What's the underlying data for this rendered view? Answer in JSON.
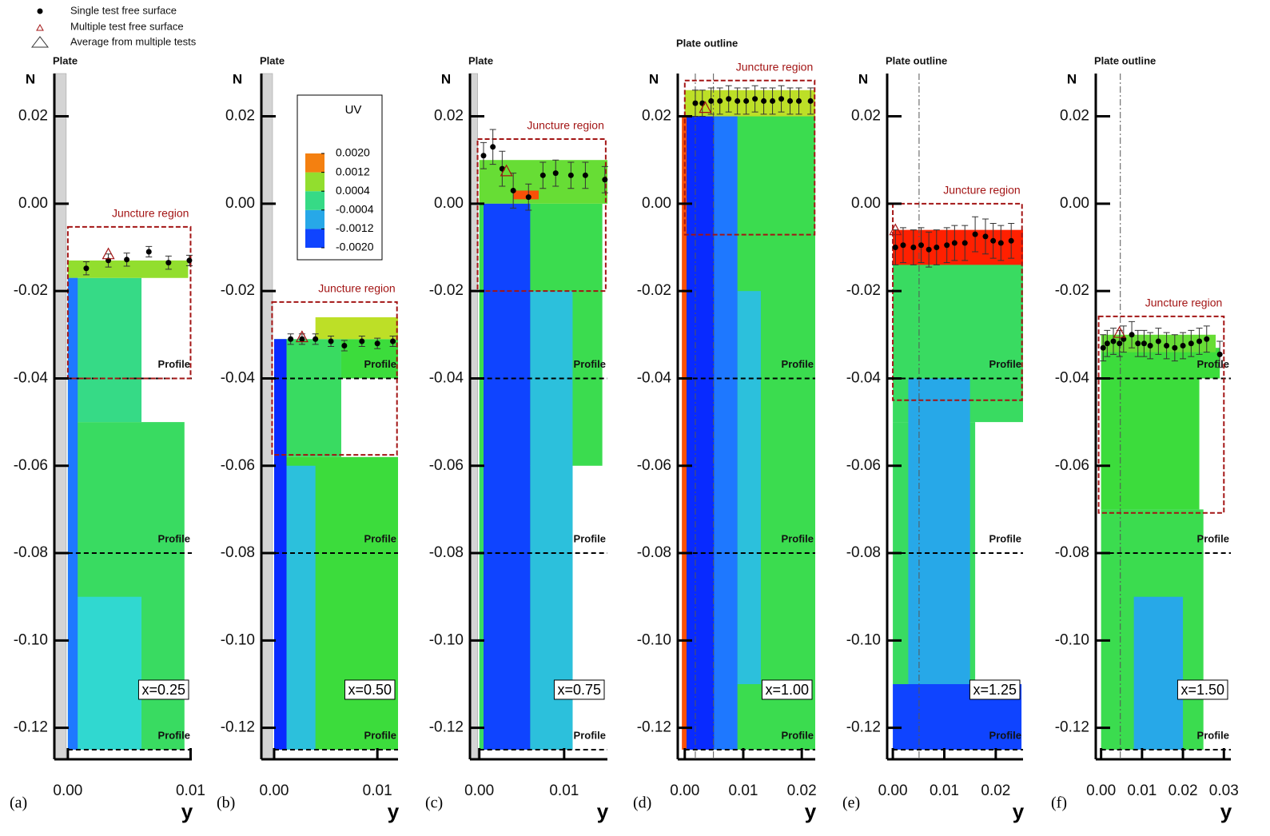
{
  "legend": [
    "Single test free surface",
    "Multiple test free surface",
    "Average from multiple tests"
  ],
  "colorbar": {
    "title": "UV",
    "ticks": [
      {
        "value": 0.002,
        "label": "0.0020"
      },
      {
        "value": 0.0012,
        "label": "0.0012"
      },
      {
        "value": 0.0004,
        "label": "0.0004"
      },
      {
        "value": -0.0004,
        "label": "-0.0004"
      },
      {
        "value": -0.0012,
        "label": "-0.0012"
      },
      {
        "value": -0.002,
        "label": "-0.0020"
      }
    ],
    "stops": [
      [
        -0.002,
        "#0010ff"
      ],
      [
        -0.0012,
        "#1e78ff"
      ],
      [
        -0.0004,
        "#30d8d0"
      ],
      [
        0.0004,
        "#3cdc3c"
      ],
      [
        0.0012,
        "#e8e020"
      ],
      [
        0.002,
        "#ff2000"
      ]
    ]
  },
  "chart_data": [
    {
      "type": "contour",
      "panel_label": "(a)",
      "plate_label": "Plate",
      "plate_style": "solid",
      "x_label": "y",
      "y_label": "N",
      "position_label": "x=0.25",
      "xlim": [
        -0.0011,
        0.0101
      ],
      "ylim": [
        -0.1272,
        0.0298
      ],
      "xticks": [
        {
          "value": 0,
          "label": "0.00"
        },
        {
          "value": 0.01,
          "label": "0.01"
        }
      ],
      "yticks": [
        {
          "value": 0.02,
          "label": "0.02"
        },
        {
          "value": 0,
          "label": "0.00"
        },
        {
          "value": -0.02,
          "label": "-0.02"
        },
        {
          "value": -0.04,
          "label": "-0.04"
        },
        {
          "value": -0.06,
          "label": "-0.06"
        },
        {
          "value": -0.08,
          "label": "-0.08"
        },
        {
          "value": -0.1,
          "label": "-0.10"
        },
        {
          "value": -0.12,
          "label": "-0.12"
        }
      ],
      "region": {
        "label": "Juncture region",
        "xlim": [
          0,
          0.01
        ],
        "ylim": [
          -0.04,
          -0.0053
        ]
      },
      "profiles": {
        "label": "Profile",
        "values": [
          -0.04,
          -0.08,
          -0.125
        ]
      },
      "field": [
        [
          0,
          0.0095,
          -0.125,
          -0.05,
          0.0002
        ],
        [
          0,
          0.006,
          -0.05,
          -0.017,
          0.0
        ],
        [
          0,
          0.0098,
          -0.017,
          -0.013,
          0.0008
        ],
        [
          0.0006,
          0.006,
          -0.125,
          -0.09,
          -0.0004
        ],
        [
          0,
          0.0008,
          -0.125,
          -0.017,
          -0.0012
        ]
      ],
      "surface": {
        "x": [
          0.0015,
          0.0033,
          0.0048,
          0.0066,
          0.0082,
          0.0099
        ],
        "values": [
          -0.0148,
          -0.013,
          -0.0128,
          -0.011,
          -0.0135,
          -0.013
        ],
        "errors": [
          0.0015,
          0.0015,
          0.0015,
          0.0012,
          0.0015,
          0.0012
        ]
      },
      "average": {
        "x": [
          0.0033
        ],
        "values": [
          -0.0115
        ]
      }
    },
    {
      "type": "contour",
      "panel_label": "(b)",
      "plate_label": "Plate",
      "plate_style": "solid",
      "x_label": "y",
      "y_label": "N",
      "position_label": "x=0.50",
      "xlim": [
        -0.00124,
        0.012
      ],
      "ylim": [
        -0.1272,
        0.0298
      ],
      "xticks": [
        {
          "value": 0,
          "label": "0.00"
        },
        {
          "value": 0.01,
          "label": "0.01"
        }
      ],
      "yticks": [
        {
          "value": 0.02,
          "label": "0.02"
        },
        {
          "value": 0,
          "label": "0.00"
        },
        {
          "value": -0.02,
          "label": "-0.02"
        },
        {
          "value": -0.04,
          "label": "-0.04"
        },
        {
          "value": -0.06,
          "label": "-0.06"
        },
        {
          "value": -0.08,
          "label": "-0.08"
        },
        {
          "value": -0.1,
          "label": "-0.10"
        },
        {
          "value": -0.12,
          "label": "-0.12"
        }
      ],
      "region": {
        "label": "Juncture region",
        "xlim": [
          -0.0002,
          0.0119
        ],
        "ylim": [
          -0.0575,
          -0.0225
        ]
      },
      "profiles": {
        "label": "Profile",
        "values": [
          -0.04,
          -0.08,
          -0.125
        ]
      },
      "field": [
        [
          0,
          0.012,
          -0.125,
          -0.058,
          0.0004
        ],
        [
          0,
          0.0065,
          -0.058,
          -0.031,
          0.0002
        ],
        [
          0.0065,
          0.012,
          -0.04,
          -0.031,
          0.0004
        ],
        [
          0.004,
          0.012,
          -0.031,
          -0.026,
          0.001
        ],
        [
          0.0012,
          0.004,
          -0.125,
          -0.06,
          -0.0006
        ],
        [
          0,
          0.0012,
          -0.125,
          -0.031,
          -0.0018
        ]
      ],
      "surface": {
        "x": [
          0.0016,
          0.0027,
          0.004,
          0.0055,
          0.0068,
          0.0085,
          0.01,
          0.0115
        ],
        "values": [
          -0.031,
          -0.031,
          -0.031,
          -0.0315,
          -0.0325,
          -0.0315,
          -0.032,
          -0.0315
        ],
        "errors": [
          0.0012,
          0.0012,
          0.0012,
          0.0012,
          0.0012,
          0.0012,
          0.0012,
          0.0012
        ]
      },
      "average": {
        "x": [
          0.0027
        ],
        "values": [
          -0.0305
        ]
      }
    },
    {
      "type": "contour",
      "panel_label": "(c)",
      "plate_label": "Plate",
      "plate_style": "solid",
      "x_label": "y",
      "y_label": "N",
      "position_label": "x=0.75",
      "xlim": [
        -0.0011,
        0.0151
      ],
      "ylim": [
        -0.1272,
        0.0298
      ],
      "xticks": [
        {
          "value": 0,
          "label": "0.00"
        },
        {
          "value": 0.01,
          "label": "0.01"
        }
      ],
      "yticks": [
        {
          "value": 0.02,
          "label": "0.02"
        },
        {
          "value": 0,
          "label": "0.00"
        },
        {
          "value": -0.02,
          "label": "-0.02"
        },
        {
          "value": -0.04,
          "label": "-0.04"
        },
        {
          "value": -0.06,
          "label": "-0.06"
        },
        {
          "value": -0.08,
          "label": "-0.08"
        },
        {
          "value": -0.1,
          "label": "-0.10"
        },
        {
          "value": -0.12,
          "label": "-0.12"
        }
      ],
      "region": {
        "label": "Juncture region",
        "xlim": [
          -0.0002,
          0.0149
        ],
        "ylim": [
          -0.02,
          0.0148
        ]
      },
      "profiles": {
        "label": "Profile",
        "values": [
          -0.04,
          -0.08,
          -0.125
        ]
      },
      "field": [
        [
          0,
          0.011,
          -0.125,
          -0.06,
          0.0002
        ],
        [
          0,
          0.0145,
          -0.06,
          0.0,
          0.0003
        ],
        [
          0,
          0.0151,
          0.0,
          0.01,
          0.0006
        ],
        [
          0.006,
          0.011,
          -0.125,
          -0.02,
          -0.0006
        ],
        [
          0.0005,
          0.006,
          -0.125,
          0.0,
          -0.0016
        ],
        [
          0.004,
          0.007,
          0.001,
          0.003,
          0.0018
        ]
      ],
      "surface": {
        "x": [
          0.0005,
          0.0016,
          0.0027,
          0.004,
          0.0058,
          0.0075,
          0.009,
          0.0108,
          0.0125,
          0.0148
        ],
        "values": [
          0.011,
          0.013,
          0.008,
          0.003,
          0.0015,
          0.0065,
          0.007,
          0.0065,
          0.0065,
          0.0055
        ],
        "errors": [
          0.003,
          0.004,
          0.004,
          0.004,
          0.003,
          0.003,
          0.003,
          0.003,
          0.003,
          0.003
        ]
      },
      "average": {
        "x": [
          0.0032
        ],
        "values": [
          0.0075
        ]
      }
    },
    {
      "type": "contour",
      "panel_label": "(d)",
      "plate_label": "Plate outline",
      "plate_style": "outline",
      "plate_outline": [
        0.0018,
        0.0049
      ],
      "x_label": "y",
      "y_label": "N",
      "position_label": "x=1.00",
      "xlim": [
        -0.0012,
        0.0223
      ],
      "ylim": [
        -0.1272,
        0.0298
      ],
      "xticks": [
        {
          "value": 0,
          "label": "0.00"
        },
        {
          "value": 0.01,
          "label": "0.01"
        },
        {
          "value": 0.02,
          "label": "0.02"
        }
      ],
      "yticks": [
        {
          "value": 0.02,
          "label": "0.02"
        },
        {
          "value": 0,
          "label": "0.00"
        },
        {
          "value": -0.02,
          "label": "-0.02"
        },
        {
          "value": -0.04,
          "label": "-0.04"
        },
        {
          "value": -0.06,
          "label": "-0.06"
        },
        {
          "value": -0.08,
          "label": "-0.08"
        },
        {
          "value": -0.1,
          "label": "-0.10"
        },
        {
          "value": -0.12,
          "label": "-0.12"
        }
      ],
      "region": {
        "label": "Juncture region",
        "xlim": [
          0,
          0.0222
        ],
        "ylim": [
          -0.0071,
          0.0282
        ]
      },
      "profiles": {
        "label": "Profile",
        "values": [
          -0.04,
          -0.08,
          -0.125
        ]
      },
      "field": [
        [
          0,
          0.0223,
          -0.125,
          0.025,
          0.0003
        ],
        [
          0.009,
          0.013,
          -0.11,
          -0.02,
          -0.0006
        ],
        [
          0.005,
          0.009,
          -0.125,
          0.025,
          -0.0012
        ],
        [
          0,
          0.005,
          -0.125,
          0.025,
          -0.0018
        ],
        [
          0,
          0.0223,
          0.02,
          0.026,
          0.001
        ],
        [
          -0.0005,
          0.0003,
          -0.125,
          0.02,
          0.0018
        ]
      ],
      "surface": {
        "x": [
          0.0018,
          0.003,
          0.0045,
          0.006,
          0.0075,
          0.009,
          0.0105,
          0.012,
          0.0135,
          0.015,
          0.0165,
          0.018,
          0.0195,
          0.0215
        ],
        "values": [
          0.023,
          0.023,
          0.0235,
          0.0235,
          0.024,
          0.0235,
          0.0235,
          0.024,
          0.0235,
          0.0235,
          0.024,
          0.0235,
          0.0235,
          0.0235
        ],
        "errors": [
          0.003,
          0.003,
          0.003,
          0.003,
          0.003,
          0.003,
          0.003,
          0.003,
          0.003,
          0.003,
          0.003,
          0.003,
          0.003,
          0.003
        ]
      },
      "average": {
        "x": [
          0.0035
        ],
        "values": [
          0.022
        ]
      }
    },
    {
      "type": "contour",
      "panel_label": "(e)",
      "plate_label": "Plate outline",
      "plate_style": "outline",
      "plate_outline": [
        0.0051
      ],
      "x_label": "y",
      "y_label": "N",
      "position_label": "x=1.25",
      "xlim": [
        -0.0011,
        0.0253
      ],
      "ylim": [
        -0.1272,
        0.0298
      ],
      "xticks": [
        {
          "value": 0,
          "label": "0.00"
        },
        {
          "value": 0.01,
          "label": "0.01"
        },
        {
          "value": 0.02,
          "label": "0.02"
        }
      ],
      "yticks": [
        {
          "value": 0.02,
          "label": "0.02"
        },
        {
          "value": 0,
          "label": "0.00"
        },
        {
          "value": -0.02,
          "label": "-0.02"
        },
        {
          "value": -0.04,
          "label": "-0.04"
        },
        {
          "value": -0.06,
          "label": "-0.06"
        },
        {
          "value": -0.08,
          "label": "-0.08"
        },
        {
          "value": -0.1,
          "label": "-0.10"
        },
        {
          "value": -0.12,
          "label": "-0.12"
        }
      ],
      "region": {
        "label": "Juncture region",
        "xlim": [
          0,
          0.0251
        ],
        "ylim": [
          -0.045,
          0
        ]
      },
      "profiles": {
        "label": "Profile",
        "values": [
          -0.04,
          -0.08,
          -0.125
        ]
      },
      "field": [
        [
          0,
          0.016,
          -0.11,
          -0.05,
          0.0002
        ],
        [
          0,
          0.0253,
          -0.05,
          -0.013,
          0.0002
        ],
        [
          0.003,
          0.015,
          -0.11,
          -0.04,
          -0.0008
        ],
        [
          0,
          0.025,
          -0.125,
          -0.11,
          -0.0016
        ],
        [
          0,
          0.0253,
          -0.014,
          -0.006,
          0.002
        ]
      ],
      "surface": {
        "x": [
          0.0005,
          0.002,
          0.004,
          0.0055,
          0.007,
          0.0085,
          0.0105,
          0.012,
          0.014,
          0.016,
          0.018,
          0.0195,
          0.021,
          0.023
        ],
        "values": [
          -0.01,
          -0.0095,
          -0.01,
          -0.0095,
          -0.0105,
          -0.01,
          -0.0095,
          -0.009,
          -0.009,
          -0.007,
          -0.0075,
          -0.0085,
          -0.009,
          -0.0085
        ],
        "errors": [
          0.004,
          0.004,
          0.004,
          0.004,
          0.004,
          0.004,
          0.004,
          0.004,
          0.004,
          0.004,
          0.004,
          0.004,
          0.004,
          0.004
        ]
      },
      "average": {
        "x": [
          0.0005
        ],
        "values": [
          -0.006
        ]
      }
    },
    {
      "type": "contour",
      "panel_label": "(f)",
      "plate_label": "Plate outline",
      "plate_style": "outline",
      "plate_outline": [
        0.0047
      ],
      "x_label": "y",
      "y_label": "N",
      "position_label": "x=1.50",
      "xlim": [
        -0.0013,
        0.0317
      ],
      "ylim": [
        -0.1272,
        0.0298
      ],
      "xticks": [
        {
          "value": 0,
          "label": "0.00"
        },
        {
          "value": 0.01,
          "label": "0.01"
        },
        {
          "value": 0.02,
          "label": "0.02"
        },
        {
          "value": 0.03,
          "label": "0.03"
        }
      ],
      "yticks": [
        {
          "value": 0.02,
          "label": "0.02"
        },
        {
          "value": 0,
          "label": "0.00"
        },
        {
          "value": -0.02,
          "label": "-0.02"
        },
        {
          "value": -0.04,
          "label": "-0.04"
        },
        {
          "value": -0.06,
          "label": "-0.06"
        },
        {
          "value": -0.08,
          "label": "-0.08"
        },
        {
          "value": -0.1,
          "label": "-0.10"
        },
        {
          "value": -0.12,
          "label": "-0.12"
        }
      ],
      "region": {
        "label": "Juncture region",
        "xlim": [
          -0.0006,
          0.03
        ],
        "ylim": [
          -0.0708,
          -0.0258
        ]
      },
      "profiles": {
        "label": "Profile",
        "values": [
          -0.04,
          -0.08,
          -0.125
        ]
      },
      "field": [
        [
          0,
          0.025,
          -0.125,
          -0.07,
          0.0003
        ],
        [
          0,
          0.024,
          -0.07,
          -0.04,
          0.0004
        ],
        [
          0,
          0.029,
          -0.04,
          -0.033,
          0.0004
        ],
        [
          0.008,
          0.02,
          -0.125,
          -0.09,
          -0.0008
        ],
        [
          0,
          0.028,
          -0.034,
          -0.03,
          0.0006
        ]
      ],
      "surface": {
        "x": [
          0.0005,
          0.0015,
          0.003,
          0.0045,
          0.0055,
          0.0075,
          0.009,
          0.0105,
          0.012,
          0.014,
          0.016,
          0.018,
          0.02,
          0.022,
          0.024,
          0.0258,
          0.029
        ],
        "values": [
          -0.033,
          -0.032,
          -0.0315,
          -0.032,
          -0.031,
          -0.03,
          -0.032,
          -0.032,
          -0.0325,
          -0.0315,
          -0.0325,
          -0.033,
          -0.0325,
          -0.032,
          -0.0315,
          -0.031,
          -0.0345
        ],
        "errors": [
          0.003,
          0.003,
          0.003,
          0.003,
          0.003,
          0.003,
          0.003,
          0.003,
          0.003,
          0.003,
          0.003,
          0.003,
          0.003,
          0.003,
          0.003,
          0.003,
          0.003
        ]
      },
      "average": {
        "x": [
          0.0045
        ],
        "values": [
          -0.0295
        ]
      }
    }
  ]
}
